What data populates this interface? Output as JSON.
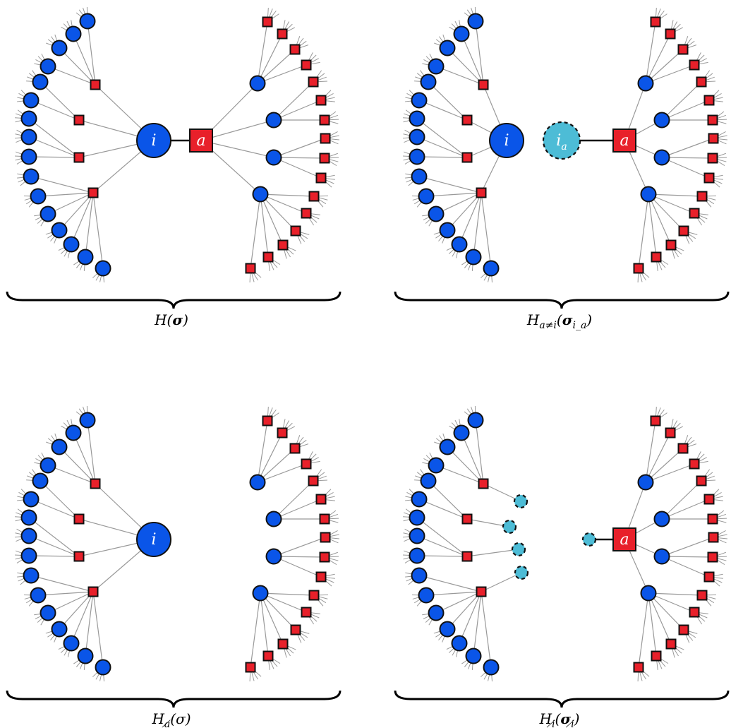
{
  "panels": [
    {
      "id": "full",
      "caption": {
        "main": "H",
        "sub": "",
        "args": "(σ)",
        "args_sub": ""
      },
      "center_variable": {
        "label": "i",
        "style": "normal"
      },
      "center_factor": {
        "label": "a"
      },
      "variant": "full"
    },
    {
      "id": "cavity-a-not-i",
      "caption": {
        "main": "H",
        "sub": "a≠i",
        "args": "(σ",
        "args_sub": "i_a",
        "args_end": ")"
      },
      "center_variable": {
        "label": "i",
        "style": "normal"
      },
      "copy_variable": {
        "label": "i",
        "label_sub": "a",
        "style": "dashed"
      },
      "center_factor": {
        "label": "a"
      },
      "variant": "split"
    },
    {
      "id": "no-a",
      "caption": {
        "main": "H",
        "sub": "a̸",
        "args": "(σ)",
        "args_sub": ""
      },
      "center_variable": {
        "label": "i",
        "style": "normal"
      },
      "variant": "factor-removed"
    },
    {
      "id": "no-i",
      "caption": {
        "main": "H",
        "sub": "i̸",
        "args": "(σ",
        "args_sub": "i̸",
        "args_end": ")"
      },
      "center_factor": {
        "label": "a"
      },
      "variant": "variable-removed"
    }
  ],
  "colors": {
    "variable": "#0a55e8",
    "cavity_variable": "#4dbcd6",
    "factor": "#e8202a",
    "edge": "#999999",
    "stroke": "#111111"
  }
}
